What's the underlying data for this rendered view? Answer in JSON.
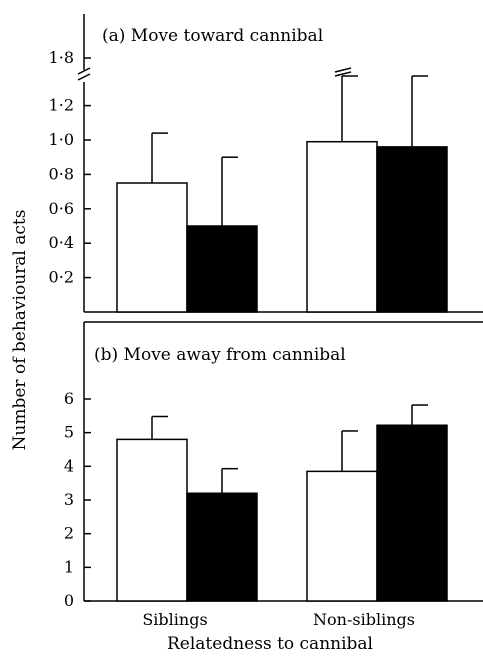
{
  "ylabel": "Number of behavioural acts",
  "xlabel": "Relatedness to cannibal",
  "colors": {
    "series_a": "#ffffff",
    "series_b": "#000000",
    "axis": "#000000"
  },
  "chart_data": [
    {
      "type": "bar",
      "title": "(a)  Move toward cannibal",
      "categories": [
        "Siblings",
        "Non-siblings"
      ],
      "series": [
        {
          "values": [
            0.75,
            0.99
          ],
          "error": [
            0.29,
            0.7
          ]
        },
        {
          "values": [
            0.5,
            0.96
          ],
          "error": [
            0.4,
            0.31
          ]
        }
      ],
      "ylim": [
        0,
        1.8
      ],
      "axis_break": [
        1.2,
        1.8
      ],
      "yticks": [
        0.2,
        0.4,
        0.6,
        0.8,
        1.0,
        1.2,
        1.8
      ],
      "ytick_labels": [
        "0·2",
        "0·4",
        "0·6",
        "0·8",
        "1·0",
        "1·2",
        "1·8"
      ]
    },
    {
      "type": "bar",
      "title": "(b)  Move away from cannibal",
      "categories": [
        "Siblings",
        "Non-siblings"
      ],
      "series": [
        {
          "values": [
            4.8,
            3.85
          ],
          "error": [
            0.68,
            1.2
          ]
        },
        {
          "values": [
            3.2,
            5.22
          ],
          "error": [
            0.73,
            0.6
          ]
        }
      ],
      "ylim": [
        0,
        7.3
      ],
      "yticks": [
        0,
        1,
        2,
        3,
        4,
        5,
        6
      ],
      "ytick_labels": [
        "0",
        "1",
        "2",
        "3",
        "4",
        "5",
        "6"
      ]
    }
  ]
}
